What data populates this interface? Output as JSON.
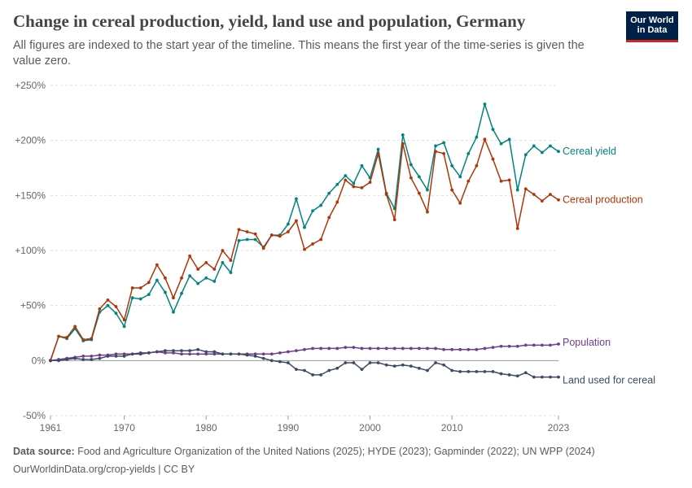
{
  "header": {
    "title": "Change in cereal production, yield, land use and population, Germany",
    "subtitle": "All figures are indexed to the start year of the timeline. This means the first year of the time-series is given the value zero.",
    "logo_line1": "Our World",
    "logo_line2": "in Data"
  },
  "footer": {
    "source_label": "Data source:",
    "source_text": "Food and Agriculture Organization of the United Nations (2025); HYDE (2023); Gapminder (2022); UN WPP (2024)",
    "url_text": "OurWorldinData.org/crop-yields | CC BY"
  },
  "chart_data": {
    "type": "line",
    "title": "Change in cereal production, yield, land use and population, Germany",
    "xlabel": "",
    "ylabel": "",
    "xlim": [
      1961,
      2023
    ],
    "ylim": [
      -50,
      250
    ],
    "y_ticks": [
      -50,
      0,
      50,
      100,
      150,
      200,
      250
    ],
    "y_tick_labels": [
      "-50%",
      "0%",
      "+50%",
      "+100%",
      "+150%",
      "+200%",
      "+250%"
    ],
    "x_ticks": [
      1961,
      1970,
      1980,
      1990,
      2000,
      2010,
      2023
    ],
    "x_tick_labels": [
      "1961",
      "1970",
      "1980",
      "1990",
      "2000",
      "2010",
      "2023"
    ],
    "grid": "horizontal dashed",
    "legend": "line-end labels on the right",
    "x": [
      1961,
      1962,
      1963,
      1964,
      1965,
      1966,
      1967,
      1968,
      1969,
      1970,
      1971,
      1972,
      1973,
      1974,
      1975,
      1976,
      1977,
      1978,
      1979,
      1980,
      1981,
      1982,
      1983,
      1984,
      1985,
      1986,
      1987,
      1988,
      1989,
      1990,
      1991,
      1992,
      1993,
      1994,
      1995,
      1996,
      1997,
      1998,
      1999,
      2000,
      2001,
      2002,
      2003,
      2004,
      2005,
      2006,
      2007,
      2008,
      2009,
      2010,
      2011,
      2012,
      2013,
      2014,
      2015,
      2016,
      2017,
      2018,
      2019,
      2020,
      2021,
      2022,
      2023
    ],
    "series": [
      {
        "name": "Cereal yield",
        "color": "#00847e",
        "values": [
          0,
          22,
          20,
          29,
          18,
          19,
          44,
          50,
          43,
          31,
          57,
          56,
          60,
          73,
          62,
          44,
          61,
          77,
          70,
          75,
          72,
          89,
          80,
          109,
          110,
          110,
          103,
          114,
          114,
          124,
          147,
          121,
          136,
          141,
          152,
          160,
          168,
          161,
          177,
          166,
          192,
          152,
          138,
          205,
          178,
          167,
          155,
          195,
          198,
          177,
          167,
          188,
          203,
          233,
          210,
          197,
          201,
          155,
          187,
          195,
          189,
          195,
          190
        ]
      },
      {
        "name": "Cereal production",
        "color": "#b13507",
        "values": [
          0,
          22,
          21,
          31,
          19,
          20,
          47,
          55,
          49,
          37,
          66,
          66,
          71,
          87,
          75,
          57,
          75,
          95,
          83,
          89,
          83,
          100,
          91,
          119,
          117,
          115,
          102,
          114,
          113,
          117,
          127,
          101,
          106,
          110,
          130,
          144,
          164,
          158,
          157,
          162,
          188,
          151,
          128,
          197,
          166,
          152,
          135,
          190,
          188,
          155,
          143,
          163,
          177,
          201,
          183,
          163,
          164,
          120,
          156,
          151,
          145,
          151,
          146
        ]
      },
      {
        "name": "Population",
        "color": "#6d3e91",
        "values": [
          0,
          1,
          2,
          3,
          4,
          4,
          5,
          5,
          6,
          6,
          6,
          7,
          7,
          8,
          7,
          7,
          6,
          6,
          6,
          6,
          6,
          6,
          6,
          6,
          6,
          6,
          6,
          6,
          7,
          8,
          9,
          10,
          11,
          11,
          11,
          11,
          12,
          12,
          11,
          11,
          11,
          11,
          11,
          11,
          11,
          11,
          11,
          11,
          10,
          10,
          10,
          10,
          10,
          11,
          12,
          13,
          13,
          13,
          14,
          14,
          14,
          14,
          15
        ]
      },
      {
        "name": "Land used for cereal",
        "color": "#3d4b66",
        "values": [
          0,
          0,
          1,
          2,
          1,
          1,
          2,
          4,
          4,
          4,
          6,
          6,
          7,
          8,
          9,
          9,
          9,
          9,
          10,
          8,
          8,
          6,
          6,
          6,
          5,
          4,
          2,
          0,
          -1,
          -2,
          -8,
          -9,
          -13,
          -13,
          -9,
          -7,
          -2,
          -2,
          -8,
          -2,
          -2,
          -4,
          -5,
          -4,
          -5,
          -7,
          -9,
          -2,
          -4,
          -9,
          -10,
          -10,
          -10,
          -10,
          -10,
          -12,
          -13,
          -14,
          -11,
          -15,
          -15,
          -15,
          -15
        ]
      }
    ]
  }
}
